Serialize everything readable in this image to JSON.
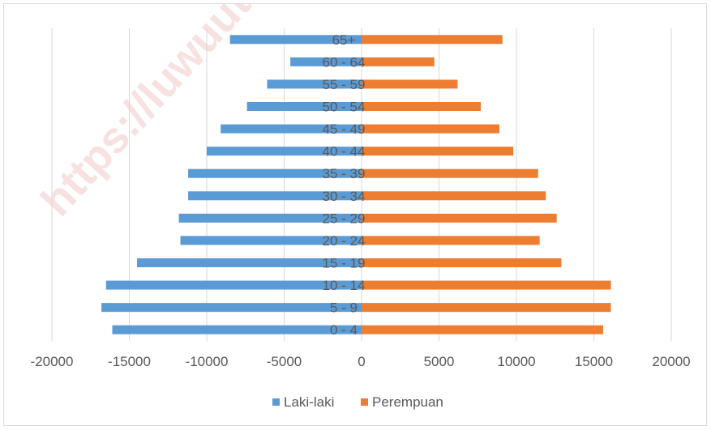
{
  "chart_data": {
    "type": "bar",
    "orientation": "horizontal",
    "categories": [
      "0 - 4",
      "5 - 9",
      "10 - 14",
      "15 - 19",
      "20 - 24",
      "25 - 29",
      "30 - 34",
      "35 - 39",
      "40 - 44",
      "45 - 49",
      "50 - 54",
      "55 - 59",
      "60 - 64",
      "65+"
    ],
    "series": [
      {
        "name": "Laki-laki",
        "color": "#5b9bd5",
        "values": [
          -16100,
          -16800,
          -16500,
          -14500,
          -11700,
          -11800,
          -11200,
          -11200,
          -10000,
          -9100,
          -7400,
          -6100,
          -4600,
          -8500
        ]
      },
      {
        "name": "Perempuan",
        "color": "#ed7d31",
        "values": [
          15600,
          16100,
          16100,
          12900,
          11500,
          12600,
          11900,
          11400,
          9800,
          8900,
          7700,
          6200,
          4700,
          9100
        ]
      }
    ],
    "x_ticks": [
      "-20000",
      "-15000",
      "-10000",
      "-5000",
      "0",
      "5000",
      "10000",
      "15000",
      "20000"
    ],
    "xlim": [
      -20000,
      20000
    ],
    "grid": "vertical",
    "legend": "bottom",
    "title": "",
    "xlabel": "",
    "ylabel": ""
  },
  "watermark": "https://luwuutara"
}
